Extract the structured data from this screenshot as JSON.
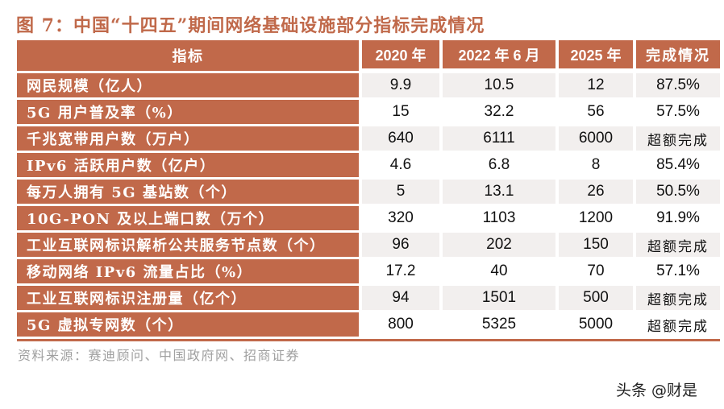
{
  "title": "图 7：中国“十四五”期间网络基础设施部分指标完成情况",
  "table": {
    "headers": [
      "指标",
      "2020 年",
      "2022 年 6 月",
      "2025 年",
      "完成情况"
    ],
    "rows": [
      {
        "indicator": "网民规模（亿人）",
        "y2020": "9.9",
        "y2022_06": "10.5",
        "y2025": "12",
        "status": "87.5%"
      },
      {
        "indicator": "5G 用户普及率（%）",
        "y2020": "15",
        "y2022_06": "32.2",
        "y2025": "56",
        "status": "57.5%"
      },
      {
        "indicator": "千兆宽带用户数（万户）",
        "y2020": "640",
        "y2022_06": "6111",
        "y2025": "6000",
        "status": "超额完成"
      },
      {
        "indicator": "IPv6 活跃用户数（亿户）",
        "y2020": "4.6",
        "y2022_06": "6.8",
        "y2025": "8",
        "status": "85.4%"
      },
      {
        "indicator": "每万人拥有 5G 基站数（个）",
        "y2020": "5",
        "y2022_06": "13.1",
        "y2025": "26",
        "status": "50.5%"
      },
      {
        "indicator": "10G-PON 及以上端口数（万个）",
        "y2020": "320",
        "y2022_06": "1103",
        "y2025": "1200",
        "status": "91.9%"
      },
      {
        "indicator": "工业互联网标识解析公共服务节点数（个）",
        "y2020": "96",
        "y2022_06": "202",
        "y2025": "150",
        "status": "超额完成"
      },
      {
        "indicator": "移动网络 IPv6 流量占比（%）",
        "y2020": "17.2",
        "y2022_06": "40",
        "y2025": "70",
        "status": "57.1%"
      },
      {
        "indicator": "工业互联网标识注册量（亿个）",
        "y2020": "94",
        "y2022_06": "1501",
        "y2025": "500",
        "status": "超额完成"
      },
      {
        "indicator": "5G 虚拟专网数（个）",
        "y2020": "800",
        "y2022_06": "5325",
        "y2025": "5000",
        "status": "超额完成"
      }
    ]
  },
  "source": "资料来源：赛迪顾问、中国政府网、招商证券",
  "watermark": "头条 @财是",
  "colors": {
    "accent": "#c1694a",
    "title": "#c0694a",
    "shade": "#f2efee"
  }
}
